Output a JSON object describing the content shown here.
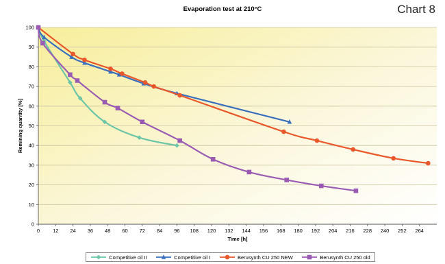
{
  "header": {
    "chart_number": "Chart 8"
  },
  "chart_data": {
    "type": "line",
    "title": "Evaporation test at 210°C",
    "xlabel": "Time [h]",
    "ylabel": "Remining quantity [%]",
    "xlim": [
      0,
      276
    ],
    "ylim": [
      0,
      100
    ],
    "xticks": [
      0,
      12,
      24,
      36,
      48,
      60,
      72,
      84,
      96,
      108,
      120,
      132,
      144,
      156,
      168,
      180,
      192,
      204,
      216,
      228,
      240,
      252,
      264
    ],
    "yticks": [
      0,
      10,
      20,
      30,
      40,
      50,
      60,
      70,
      80,
      90,
      100
    ],
    "grid": "horizontal",
    "legend_position": "bottom",
    "series": [
      {
        "name": "Competitive oil II",
        "color": "#6cc5a6",
        "marker": "diamond",
        "x": [
          0,
          4,
          22,
          29,
          46,
          70,
          96
        ],
        "y": [
          100,
          93,
          72,
          64,
          52,
          44,
          40
        ]
      },
      {
        "name": "Competitive oil I",
        "color": "#3a6fbd",
        "marker": "triangle",
        "x": [
          0,
          4,
          23,
          32,
          50,
          56,
          73,
          96,
          174
        ],
        "y": [
          100,
          95,
          85,
          82,
          77.5,
          76,
          71.5,
          66.5,
          52
        ]
      },
      {
        "name": "Berusynth CU 250 NEW",
        "color": "#e8582a",
        "marker": "circle",
        "x": [
          0,
          24,
          32,
          50,
          58,
          74,
          80,
          98,
          170,
          193,
          218,
          246,
          270
        ],
        "y": [
          100,
          86.5,
          83.5,
          79,
          76.5,
          72,
          70,
          65.5,
          47,
          42.5,
          38,
          33.5,
          31
        ]
      },
      {
        "name": "Berusynth CU 250 old",
        "color": "#9a5cb3",
        "marker": "square",
        "x": [
          0,
          3,
          22,
          27,
          46,
          55,
          72,
          98,
          121,
          146,
          172,
          196,
          220
        ],
        "y": [
          100,
          92,
          76,
          73,
          62,
          59,
          52,
          42.5,
          33,
          26.5,
          22.5,
          19.5,
          17
        ]
      }
    ]
  }
}
